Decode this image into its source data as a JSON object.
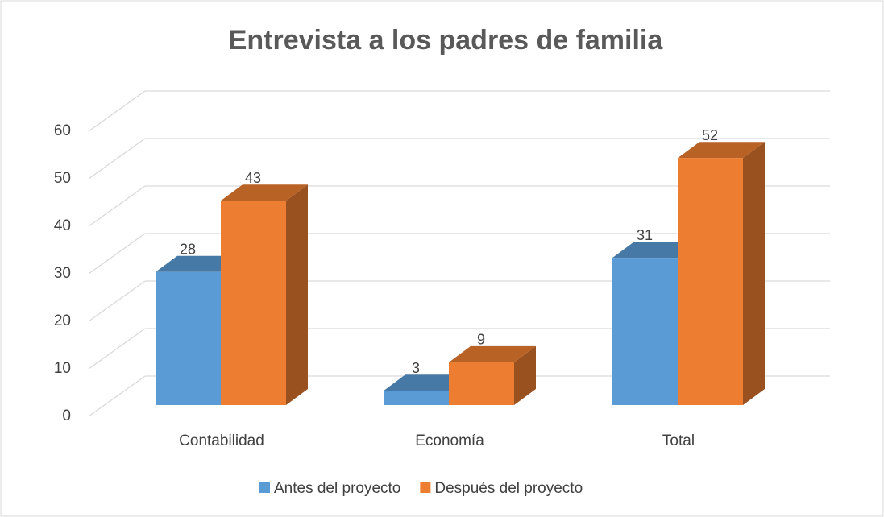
{
  "chart_data": {
    "type": "bar3d",
    "title": "Entrevista a los padres de familia",
    "categories": [
      "Contabilidad",
      "Economía",
      "Total"
    ],
    "series": [
      {
        "name": "Antes del proyecto",
        "color": "#5b9bd5",
        "values": [
          28,
          3,
          31
        ]
      },
      {
        "name": "Después del proyecto",
        "color": "#ed7d31",
        "values": [
          43,
          9,
          52
        ]
      }
    ],
    "ylim": [
      0,
      60
    ],
    "yticks": [
      0,
      10,
      20,
      30,
      40,
      50,
      60
    ],
    "grid": true,
    "legend": "bottom"
  }
}
